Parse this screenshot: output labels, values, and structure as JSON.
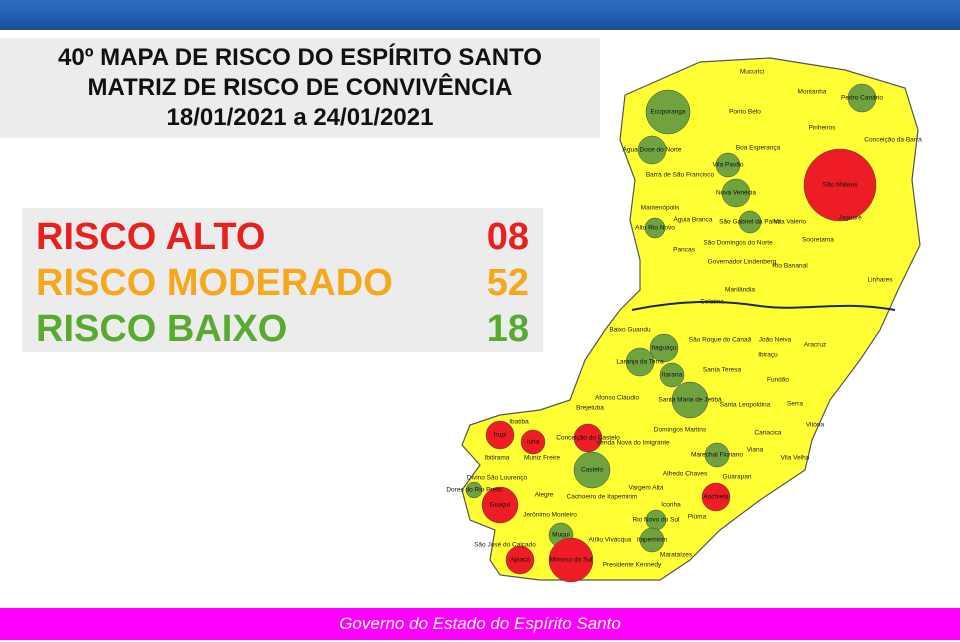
{
  "header": {
    "title_lines": [
      "40º MAPA DE RISCO DO ESPÍRITO SANTO",
      "MATRIZ DE RISCO DE CONVIVÊNCIA",
      "18/01/2021 a 24/01/2021"
    ]
  },
  "legend": {
    "rows": [
      {
        "label": "RISCO ALTO",
        "count": "08",
        "color": "#e8211f"
      },
      {
        "label": "RISCO MODERADO",
        "count": "52",
        "color": "#f4a81d"
      },
      {
        "label": "RISCO BAIXO",
        "count": "18",
        "color": "#5aaa32"
      }
    ]
  },
  "map": {
    "fill_colors": {
      "alto": "#ee1c24",
      "moderado": "#ffff33",
      "baixo": "#70a340"
    },
    "municipalities": [
      {
        "name": "Mucurici",
        "risk": "moderado"
      },
      {
        "name": "Montanha",
        "risk": "moderado"
      },
      {
        "name": "Pedro Canário",
        "risk": "baixo"
      },
      {
        "name": "Ecoporanga",
        "risk": "baixo"
      },
      {
        "name": "Ponto Belo",
        "risk": "moderado"
      },
      {
        "name": "Pinheiros",
        "risk": "moderado"
      },
      {
        "name": "Conceição da Barra",
        "risk": "moderado"
      },
      {
        "name": "Boa Esperança",
        "risk": "moderado"
      },
      {
        "name": "Água Doce do Norte",
        "risk": "baixo"
      },
      {
        "name": "Barra de São Francisco",
        "risk": "moderado"
      },
      {
        "name": "Vila Pavão",
        "risk": "baixo"
      },
      {
        "name": "São Mateus",
        "risk": "alto"
      },
      {
        "name": "Nova Venécia",
        "risk": "baixo"
      },
      {
        "name": "Mantenópolis",
        "risk": "moderado"
      },
      {
        "name": "Alto Rio Novo",
        "risk": "baixo"
      },
      {
        "name": "Águia Branca",
        "risk": "moderado"
      },
      {
        "name": "São Gabriel da Palha",
        "risk": "baixo"
      },
      {
        "name": "Vila Valério",
        "risk": "moderado"
      },
      {
        "name": "Jaguaré",
        "risk": "moderado"
      },
      {
        "name": "Sooretama",
        "risk": "moderado"
      },
      {
        "name": "Pancas",
        "risk": "moderado"
      },
      {
        "name": "São Domingos do Norte",
        "risk": "moderado"
      },
      {
        "name": "Governador Lindenberg",
        "risk": "moderado"
      },
      {
        "name": "Rio Bananal",
        "risk": "moderado"
      },
      {
        "name": "Linhares",
        "risk": "moderado"
      },
      {
        "name": "Marilândia",
        "risk": "moderado"
      },
      {
        "name": "Colatina",
        "risk": "moderado"
      },
      {
        "name": "Baixo Guandu",
        "risk": "moderado"
      },
      {
        "name": "São Roque do Canaã",
        "risk": "moderado"
      },
      {
        "name": "João Neiva",
        "risk": "moderado"
      },
      {
        "name": "Aracruz",
        "risk": "moderado"
      },
      {
        "name": "Itaguaçu",
        "risk": "baixo"
      },
      {
        "name": "Ibiraçu",
        "risk": "moderado"
      },
      {
        "name": "Laranja da Terra",
        "risk": "baixo"
      },
      {
        "name": "Itarana",
        "risk": "baixo"
      },
      {
        "name": "Santa Teresa",
        "risk": "moderado"
      },
      {
        "name": "Fundão",
        "risk": "moderado"
      },
      {
        "name": "Afonso Cláudio",
        "risk": "moderado"
      },
      {
        "name": "Santa Maria de Jetibá",
        "risk": "baixo"
      },
      {
        "name": "Santa Leopoldina",
        "risk": "moderado"
      },
      {
        "name": "Serra",
        "risk": "moderado"
      },
      {
        "name": "Brejetuba",
        "risk": "moderado"
      },
      {
        "name": "Ibatiba",
        "risk": "moderado"
      },
      {
        "name": "Vitória",
        "risk": "moderado"
      },
      {
        "name": "Domingos Martins",
        "risk": "moderado"
      },
      {
        "name": "Cariacica",
        "risk": "moderado"
      },
      {
        "name": "Irupi",
        "risk": "alto"
      },
      {
        "name": "Iúna",
        "risk": "alto"
      },
      {
        "name": "Conceição do Castelo",
        "risk": "alto"
      },
      {
        "name": "Venda Nova do Imigrante",
        "risk": "moderado"
      },
      {
        "name": "Viana",
        "risk": "moderado"
      },
      {
        "name": "Marechal Floriano",
        "risk": "baixo"
      },
      {
        "name": "Vila Velha",
        "risk": "moderado"
      },
      {
        "name": "Ibitirama",
        "risk": "moderado"
      },
      {
        "name": "Muniz Freire",
        "risk": "moderado"
      },
      {
        "name": "Castelo",
        "risk": "baixo"
      },
      {
        "name": "Alfredo Chaves",
        "risk": "moderado"
      },
      {
        "name": "Guarapari",
        "risk": "moderado"
      },
      {
        "name": "Divino São Lourenço",
        "risk": "moderado"
      },
      {
        "name": "Dores do Rio Preto",
        "risk": "baixo"
      },
      {
        "name": "Alegre",
        "risk": "moderado"
      },
      {
        "name": "Cachoeiro de Itapemirim",
        "risk": "moderado"
      },
      {
        "name": "Vargem Alta",
        "risk": "moderado"
      },
      {
        "name": "Anchieta",
        "risk": "alto"
      },
      {
        "name": "Guaçuí",
        "risk": "alto"
      },
      {
        "name": "Iconha",
        "risk": "moderado"
      },
      {
        "name": "Piúma",
        "risk": "moderado"
      },
      {
        "name": "Jerônimo Monteiro",
        "risk": "moderado"
      },
      {
        "name": "Rio Novo do Sul",
        "risk": "baixo"
      },
      {
        "name": "Muqui",
        "risk": "baixo"
      },
      {
        "name": "Atílio Vivácqua",
        "risk": "moderado"
      },
      {
        "name": "Itapemirim",
        "risk": "baixo"
      },
      {
        "name": "São José do Calçado",
        "risk": "moderado"
      },
      {
        "name": "Marataízes",
        "risk": "moderado"
      },
      {
        "name": "Apiacá",
        "risk": "alto"
      },
      {
        "name": "Mimoso do Sul",
        "risk": "alto"
      },
      {
        "name": "Presidente Kennedy",
        "risk": "moderado"
      }
    ]
  },
  "footer": {
    "text": "Governo do Estado do Espírito Santo"
  }
}
